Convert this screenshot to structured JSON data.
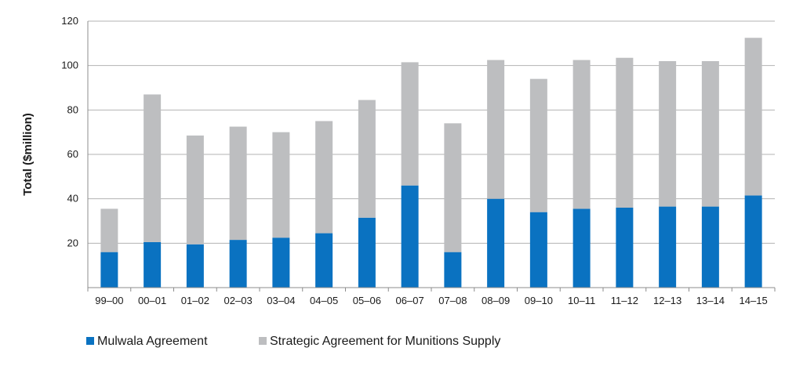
{
  "chart_data": {
    "type": "bar",
    "stacked": true,
    "title": "",
    "xlabel": "",
    "ylabel": "Total ($million)",
    "ylim": [
      0,
      120
    ],
    "yticks": [
      20,
      40,
      60,
      80,
      100,
      120
    ],
    "grid": true,
    "legend_position": "bottom-left",
    "categories": [
      "99–00",
      "00–01",
      "01–02",
      "02–03",
      "03–04",
      "04–05",
      "05–06",
      "06–07",
      "07–08",
      "08–09",
      "09–10",
      "10–11",
      "11–12",
      "12–13",
      "13–14",
      "14–15"
    ],
    "series": [
      {
        "name": "Mulwala Agreement",
        "color": "#0a72c1",
        "values": [
          16,
          20.5,
          19.5,
          21.5,
          22.5,
          24.5,
          31.5,
          46,
          16,
          40,
          34,
          35.5,
          36,
          36.5,
          36.5,
          41.5
        ]
      },
      {
        "name": "Strategic Agreement for Munitions Supply",
        "color": "#bdbec0",
        "values": [
          19.5,
          66.5,
          49,
          51,
          47.5,
          50.5,
          53,
          55.5,
          58,
          62.5,
          60,
          67,
          67.5,
          65.5,
          65.5,
          71
        ]
      }
    ]
  }
}
